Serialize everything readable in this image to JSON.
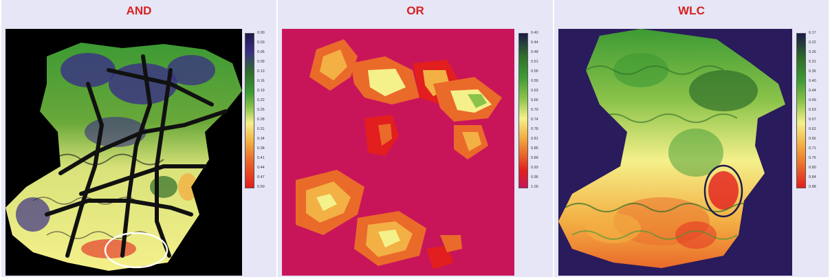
{
  "panels": [
    {
      "title": "AND",
      "colors": [
        "#1c1a4a",
        "#3a2f86",
        "#2f6d2a",
        "#3d9a34",
        "#8bc34a",
        "#f4f08a",
        "#f3b044",
        "#ea6a2a",
        "#e21e1e"
      ],
      "legend_ticks": [
        "0.00",
        "0.03",
        "0.06",
        "0.09",
        "0.13",
        "0.16",
        "0.19",
        "0.22",
        "0.25",
        "0.28",
        "0.31",
        "0.34",
        "0.38",
        "0.41",
        "0.44",
        "0.47",
        "0.50"
      ]
    },
    {
      "title": "OR",
      "colors": [
        "#1c1a4a",
        "#2f6d2a",
        "#3d9a34",
        "#8bc34a",
        "#f4f08a",
        "#f3b044",
        "#ea6a2a",
        "#e21e1e",
        "#c8155a"
      ],
      "legend_ticks": [
        "0.40",
        "0.44",
        "0.48",
        "0.51",
        "0.55",
        "0.59",
        "0.63",
        "0.66",
        "0.70",
        "0.74",
        "0.78",
        "0.81",
        "0.85",
        "0.89",
        "0.93",
        "0.96",
        "1.00"
      ]
    },
    {
      "title": "WLC",
      "colors": [
        "#1c1a4a",
        "#2f6d2a",
        "#3d9a34",
        "#8bc34a",
        "#f4f08a",
        "#f3b044",
        "#ea6a2a",
        "#e21e1e"
      ],
      "legend_ticks": [
        "0.17",
        "0.22",
        "0.26",
        "0.31",
        "0.35",
        "0.40",
        "0.44",
        "0.49",
        "0.53",
        "0.57",
        "0.62",
        "0.66",
        "0.71",
        "0.75",
        "0.80",
        "0.84",
        "0.88"
      ]
    }
  ]
}
